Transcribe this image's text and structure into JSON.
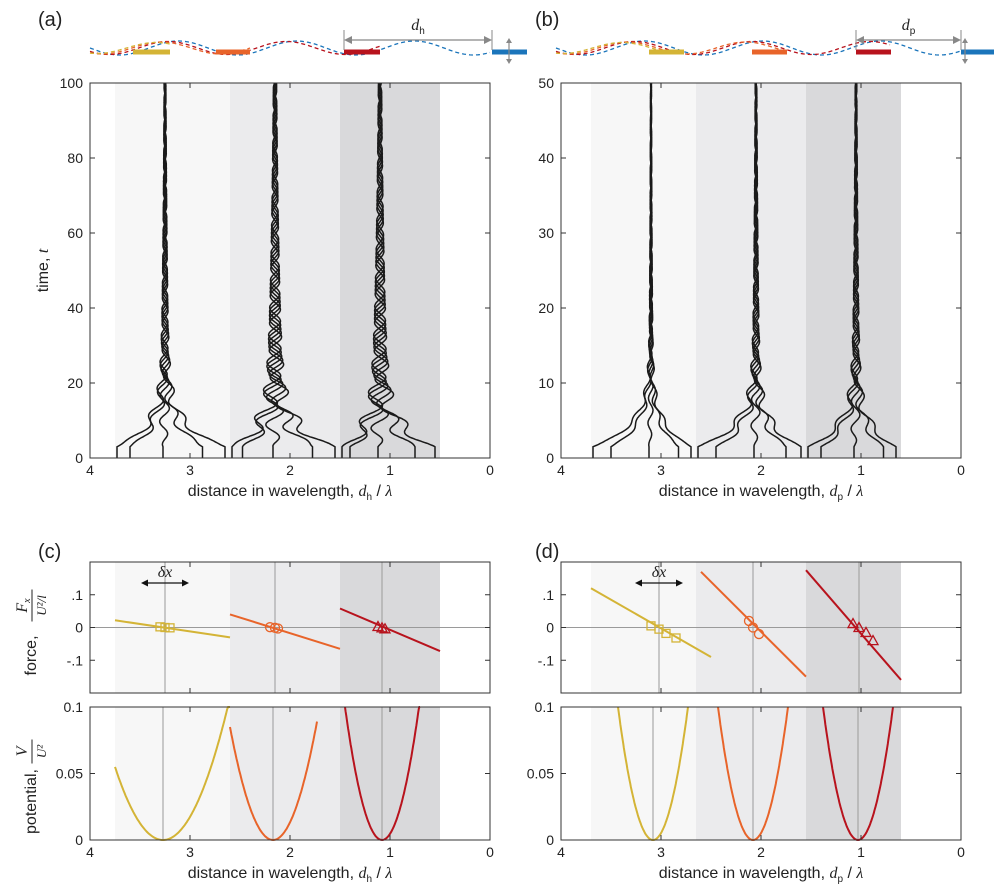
{
  "panel_labels": [
    "(a)",
    "(b)",
    "(c)",
    "(d)"
  ],
  "colors": {
    "yellow": "#D4B436",
    "orange": "#E8642A",
    "red": "#B8131D",
    "blue": "#1B75BB",
    "trajectory": "#1a1a1a",
    "axis": "#333333",
    "zero_line": "#9a9a9a",
    "band_light": "#F7F7F7",
    "band_mid": "#EBEBED",
    "band_dark": "#D9D9DB"
  },
  "schematics": {
    "a": {
      "distance_symbol": "d",
      "distance_subscript": "h"
    },
    "b": {
      "distance_symbol": "d",
      "distance_subscript": "p"
    }
  },
  "x_axes": {
    "xlabel_text": "distance in wavelength, ",
    "h_sub": "h",
    "p_sub": "p",
    "lambda": "λ",
    "ticks": [
      "4",
      "3",
      "2",
      "1",
      "0"
    ]
  },
  "y_axes": {
    "time_label": "time, ",
    "time_symbol": "t",
    "force_label": "force, ",
    "potential_label": "potential, ",
    "force_frac_num": "F",
    "force_frac_num_sub": "x",
    "force_frac_den": "U²/l",
    "potential_frac_num": "V",
    "potential_frac_den": "U²",
    "delta_x": "δx"
  },
  "chart_data": [
    {
      "panel": "a",
      "type": "line",
      "xlabel": "distance in wavelength, d_h / λ",
      "ylabel": "time, t",
      "xlim": [
        4,
        0
      ],
      "ylim": [
        0,
        100
      ],
      "yticks": [
        0,
        20,
        40,
        60,
        80,
        100
      ],
      "xticks": [
        4,
        3,
        2,
        1,
        0
      ],
      "bands": [
        [
          3.75,
          2.6
        ],
        [
          2.6,
          1.5
        ],
        [
          1.5,
          0.5
        ]
      ],
      "equilibria": [
        3.25,
        2.15,
        1.1
      ],
      "note": "trajectories of three droplets settling to equilibria"
    },
    {
      "panel": "b",
      "type": "line",
      "xlabel": "distance in wavelength, d_p / λ",
      "ylabel": "time, t",
      "xlim": [
        4,
        0
      ],
      "ylim": [
        0,
        50
      ],
      "yticks": [
        0,
        10,
        20,
        30,
        40,
        50
      ],
      "xticks": [
        4,
        3,
        2,
        1,
        0
      ],
      "bands": [
        [
          3.7,
          2.65
        ],
        [
          2.65,
          1.55
        ],
        [
          1.55,
          0.6
        ]
      ],
      "equilibria": [
        3.1,
        2.05,
        1.05
      ]
    },
    {
      "panel": "c",
      "type": "line",
      "ylabel": "force, F_x / (U²/l)",
      "xlim": [
        4,
        0
      ],
      "ylim": [
        -0.2,
        0.2
      ],
      "yticks": [
        -0.1,
        0,
        0.1
      ],
      "xticks": [
        4,
        3,
        2,
        1,
        0
      ],
      "bands": [
        [
          3.75,
          2.6
        ],
        [
          2.6,
          1.5
        ],
        [
          1.5,
          0.5
        ]
      ],
      "series": [
        {
          "color": "yellow",
          "x": [
            3.75,
            2.6
          ],
          "y": [
            0.022,
            -0.03
          ],
          "markers": "square",
          "marker_x": [
            3.3,
            3.25,
            3.2
          ],
          "marker_y": [
            0.002,
            0.0,
            -0.001
          ]
        },
        {
          "color": "orange",
          "x": [
            2.6,
            1.5
          ],
          "y": [
            0.04,
            -0.065
          ],
          "markers": "circle",
          "marker_x": [
            2.2,
            2.15,
            2.12
          ],
          "marker_y": [
            0.001,
            -0.001,
            -0.003
          ]
        },
        {
          "color": "red",
          "x": [
            1.5,
            0.5
          ],
          "y": [
            0.058,
            -0.072
          ],
          "markers": "triangle",
          "marker_x": [
            1.12,
            1.08,
            1.05
          ],
          "marker_y": [
            0.003,
            -0.001,
            -0.004
          ]
        }
      ]
    },
    {
      "panel": "c",
      "type": "line",
      "xlabel": "distance in wavelength, d_h / λ",
      "ylabel": "potential, V / U²",
      "xlim": [
        4,
        0
      ],
      "ylim": [
        0,
        0.1
      ],
      "yticks": [
        0,
        0.05,
        0.1
      ],
      "xticks": [
        4,
        3,
        2,
        1,
        0
      ],
      "series": [
        {
          "color": "yellow",
          "vertex_x": 3.27,
          "x_range": [
            3.75,
            2.6
          ],
          "y_at_left": 0.055
        },
        {
          "color": "orange",
          "vertex_x": 2.17,
          "x_range": [
            2.6,
            1.73
          ],
          "y_at_left": 0.085
        },
        {
          "color": "red",
          "vertex_x": 1.08,
          "x_range": [
            1.45,
            0.7
          ],
          "y_at_left": 0.1
        }
      ]
    },
    {
      "panel": "d",
      "type": "line",
      "ylabel": "force, F_x / (U²/l)",
      "xlim": [
        4,
        0
      ],
      "ylim": [
        -0.2,
        0.2
      ],
      "yticks": [
        -0.1,
        0,
        0.1
      ],
      "xticks": [
        4,
        3,
        2,
        1,
        0
      ],
      "bands": [
        [
          3.7,
          2.65
        ],
        [
          2.65,
          1.55
        ],
        [
          1.55,
          0.6
        ]
      ],
      "series": [
        {
          "color": "yellow",
          "x": [
            3.7,
            2.5
          ],
          "y": [
            0.12,
            -0.09
          ],
          "markers": "square",
          "marker_x": [
            3.1,
            3.02,
            2.95,
            2.85
          ],
          "marker_y": [
            0.005,
            -0.005,
            -0.018,
            -0.032
          ]
        },
        {
          "color": "orange",
          "x": [
            2.6,
            1.55
          ],
          "y": [
            0.17,
            -0.15
          ],
          "markers": "circle",
          "marker_x": [
            2.12,
            2.08,
            2.02
          ],
          "marker_y": [
            0.02,
            0.0,
            -0.02
          ]
        },
        {
          "color": "red",
          "x": [
            1.55,
            0.6
          ],
          "y": [
            0.175,
            -0.16
          ],
          "markers": "triangle",
          "marker_x": [
            1.08,
            1.02,
            0.95,
            0.88
          ],
          "marker_y": [
            0.012,
            0.0,
            -0.015,
            -0.04
          ]
        }
      ]
    },
    {
      "panel": "d",
      "type": "line",
      "xlabel": "distance in wavelength, d_p / λ",
      "ylabel": "potential, V / U²",
      "xlim": [
        4,
        0
      ],
      "ylim": [
        0,
        0.1
      ],
      "yticks": [
        0,
        0.05,
        0.1
      ],
      "xticks": [
        4,
        3,
        2,
        1,
        0
      ],
      "series": [
        {
          "color": "yellow",
          "vertex_x": 3.08,
          "x_range": [
            3.43,
            2.73
          ],
          "y_at_left": 0.1
        },
        {
          "color": "orange",
          "vertex_x": 2.08,
          "x_range": [
            2.43,
            1.73
          ],
          "y_at_left": 0.1
        },
        {
          "color": "red",
          "vertex_x": 1.03,
          "x_range": [
            1.38,
            0.68
          ],
          "y_at_left": 0.1
        }
      ]
    }
  ]
}
